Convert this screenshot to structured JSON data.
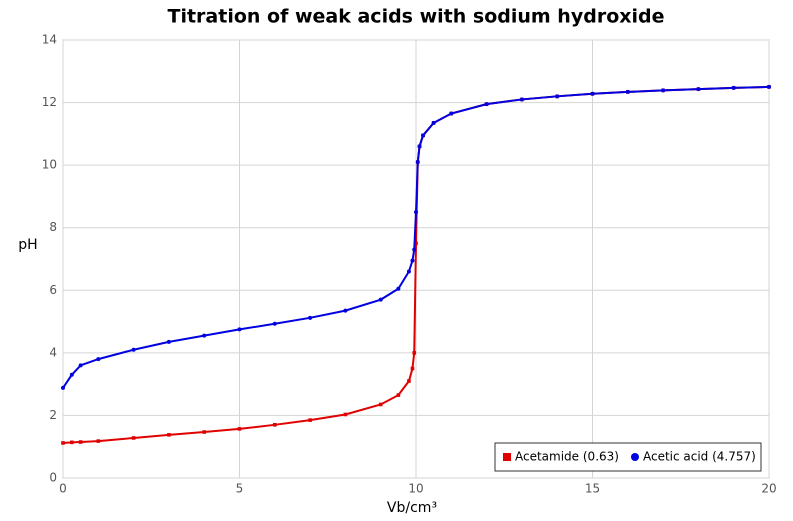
{
  "chart_data": {
    "type": "line",
    "title": "Titration of weak acids with sodium hydroxide",
    "x_label": "Vb/cm³",
    "y_label": "pH",
    "x": [
      0,
      0.25,
      0.5,
      1,
      2,
      3,
      4,
      5,
      6,
      7,
      8,
      9,
      9.5,
      9.8,
      9.9,
      9.95,
      10,
      10.05,
      10.1,
      10.2,
      10.5,
      11,
      12,
      13,
      14,
      15,
      16,
      17,
      18,
      19,
      20
    ],
    "series": [
      {
        "name": "Acetamide (0.63)",
        "color": "#e00000",
        "marker": "square",
        "values": [
          1.12,
          1.14,
          1.15,
          1.18,
          1.28,
          1.38,
          1.47,
          1.57,
          1.7,
          1.85,
          2.03,
          2.35,
          2.65,
          3.1,
          3.5,
          4.0,
          7.5,
          10.1,
          10.6,
          10.95,
          11.35,
          11.65,
          11.95,
          12.1,
          12.2,
          12.28,
          12.34,
          12.39,
          12.43,
          12.47,
          12.5
        ]
      },
      {
        "name": "Acetic acid (4.757)",
        "color": "#0000e0",
        "marker": "circle",
        "values": [
          2.88,
          3.3,
          3.6,
          3.8,
          4.1,
          4.35,
          4.55,
          4.75,
          4.93,
          5.12,
          5.35,
          5.7,
          6.05,
          6.6,
          6.95,
          7.3,
          8.5,
          10.1,
          10.6,
          10.95,
          11.35,
          11.65,
          11.95,
          12.1,
          12.2,
          12.28,
          12.34,
          12.39,
          12.43,
          12.47,
          12.5
        ]
      }
    ],
    "xlim": [
      0,
      20
    ],
    "xticks": [
      0,
      5,
      10,
      15,
      20
    ],
    "ylim": [
      0,
      14
    ],
    "yticks": [
      0,
      2,
      4,
      6,
      8,
      10,
      12,
      14
    ],
    "grid": true,
    "legend": "bottom-right"
  }
}
